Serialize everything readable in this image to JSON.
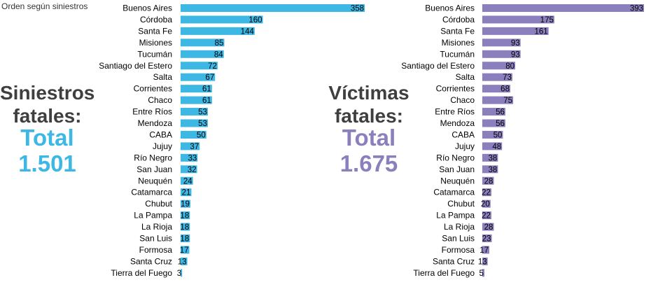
{
  "note": "Orden según siniestros",
  "colors": {
    "left": "#3db7e4",
    "right": "#8c7fbd"
  },
  "left_panel": {
    "label_line1": "Siniestros",
    "label_line2": "fatales:",
    "total_label": "Total",
    "total_value": "1.501"
  },
  "right_panel": {
    "label_line1": "Víctimas",
    "label_line2": "fatales:",
    "total_label": "Total",
    "total_value": "1.675"
  },
  "chart_data": [
    {
      "type": "bar",
      "orientation": "horizontal",
      "categories": [
        "Buenos Aires",
        "Córdoba",
        "Santa Fe",
        "Misiones",
        "Tucumán",
        "Santiago del Estero",
        "Salta",
        "Corrientes",
        "Chaco",
        "Entre Ríos",
        "Mendoza",
        "CABA",
        "Jujuy",
        "Río Negro",
        "San Juan",
        "Neuquén",
        "Catamarca",
        "Chubut",
        "La Pampa",
        "La Rioja",
        "San Luis",
        "Formosa",
        "Santa Cruz",
        "Tierra del Fuego"
      ],
      "values": [
        358,
        160,
        144,
        85,
        84,
        72,
        67,
        61,
        61,
        53,
        53,
        50,
        37,
        33,
        32,
        24,
        21,
        19,
        18,
        18,
        18,
        17,
        13,
        3
      ],
      "color": "#3db7e4"
    },
    {
      "type": "bar",
      "orientation": "horizontal",
      "categories": [
        "Buenos Aires",
        "Córdoba",
        "Santa Fe",
        "Misiones",
        "Tucumán",
        "Santiago del Estero",
        "Salta",
        "Corrientes",
        "Chaco",
        "Entre Ríos",
        "Mendoza",
        "CABA",
        "Jujuy",
        "Río Negro",
        "San Juan",
        "Neuquén",
        "Catamarca",
        "Chubut",
        "La Pampa",
        "La Rioja",
        "San Luis",
        "Formosa",
        "Santa Cruz",
        "Tierra del Fuego"
      ],
      "values": [
        393,
        175,
        161,
        93,
        93,
        80,
        73,
        68,
        75,
        56,
        56,
        50,
        48,
        38,
        38,
        28,
        22,
        20,
        22,
        28,
        23,
        17,
        13,
        5
      ],
      "color": "#8c7fbd"
    }
  ]
}
